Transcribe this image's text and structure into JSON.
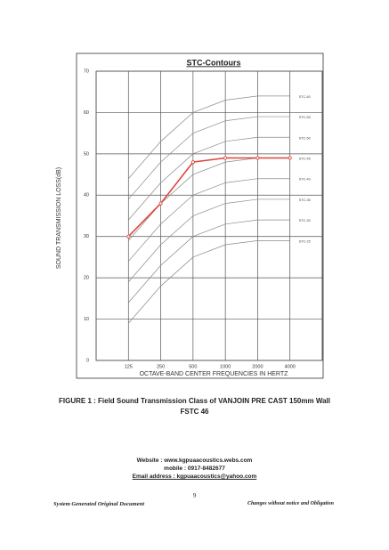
{
  "chart_data": {
    "type": "line",
    "title": "STC-Contours",
    "y_label": "SOUND TRANSMISSION LOSS(dB)",
    "x_label": "OCTAVE-BAND CENTER FREQUENCIES IN HERTZ",
    "categories": [
      "125",
      "250",
      "500",
      "1000",
      "2000",
      "4000"
    ],
    "series": [
      {
        "color": "#e0453a",
        "values": [
          30,
          38,
          48,
          49,
          49,
          49
        ]
      }
    ],
    "contours": [
      {
        "name": "STC-60",
        "values": [
          44,
          53,
          60,
          63,
          64,
          64
        ]
      },
      {
        "name": "STC-55",
        "values": [
          39,
          48,
          55,
          58,
          59,
          59
        ]
      },
      {
        "name": "STC-50",
        "values": [
          34,
          43,
          50,
          53,
          54,
          54
        ]
      },
      {
        "name": "STC-45",
        "values": [
          29,
          38,
          45,
          48,
          49,
          49
        ]
      },
      {
        "name": "STC-40",
        "values": [
          24,
          33,
          40,
          43,
          44,
          44
        ]
      },
      {
        "name": "STC-35",
        "values": [
          19,
          28,
          35,
          38,
          39,
          39
        ]
      },
      {
        "name": "STC-30",
        "values": [
          14,
          23,
          30,
          33,
          34,
          34
        ]
      },
      {
        "name": "STC-25",
        "values": [
          9,
          18,
          25,
          28,
          29,
          29
        ]
      }
    ],
    "contour_color": "#8a8a8a",
    "ylim": [
      0,
      70
    ],
    "yticks": [
      0,
      10,
      20,
      30,
      40,
      50,
      60,
      70
    ],
    "grid": true
  },
  "document": {
    "caption": [
      "FIGURE 1 : Field Sound Transmission Class of VANJOIN PRE CAST 150mm Wall",
      "FSTC 46"
    ],
    "contact": [
      "Website : www.kgpuaacoustics.webs.com",
      "mobile : 0917-8482677",
      "Email address : kgpuaacoustics@yahoo.com"
    ],
    "page_number": "9",
    "footer_left": "System Generated Original Document",
    "footer_right": "Changes without notice and Obligation"
  }
}
